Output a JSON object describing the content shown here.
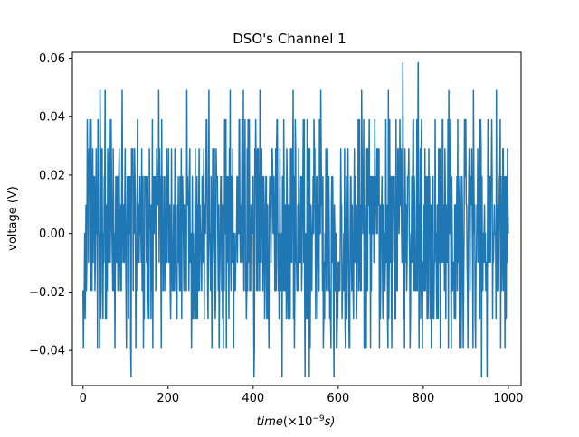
{
  "chart_data": {
    "type": "line",
    "title": "DSO's Channel 1",
    "xlabel_main": "time",
    "xlabel_suffix": "(×10",
    "xlabel_exp": "−9",
    "xlabel_unit": "s)",
    "ylabel": "voltage (V)",
    "xlim": [
      -25,
      1030
    ],
    "ylim": [
      -0.052,
      0.062
    ],
    "x_ticks": [
      0,
      200,
      400,
      600,
      800,
      1000
    ],
    "x_tick_labels": [
      "0",
      "200",
      "400",
      "600",
      "800",
      "1000"
    ],
    "y_ticks": [
      -0.04,
      -0.02,
      0.0,
      0.02,
      0.04,
      0.06
    ],
    "y_tick_labels": [
      "−0.04",
      "−0.02",
      "0.00",
      "0.02",
      "0.04",
      "0.06"
    ],
    "grid": false,
    "series": [
      {
        "color": "#1f77b4",
        "x_range": [
          0,
          1000
        ],
        "sample_count": 1001,
        "voltage_levels": [
          -0.049,
          -0.039,
          -0.029,
          -0.0195,
          -0.0098,
          0.0,
          0.0098,
          0.0195,
          0.029,
          0.039,
          0.049,
          0.0585
        ],
        "peak_max": [
          [
            752,
            0.0585
          ],
          [
            788,
            0.0585
          ]
        ],
        "peak_min": [
          [
            113,
            -0.049
          ],
          [
            402,
            -0.049
          ],
          [
            468,
            -0.049
          ],
          [
            522,
            -0.049
          ],
          [
            532,
            -0.049
          ],
          [
            590,
            -0.049
          ],
          [
            937,
            -0.049
          ],
          [
            950,
            -0.049
          ]
        ]
      }
    ]
  }
}
